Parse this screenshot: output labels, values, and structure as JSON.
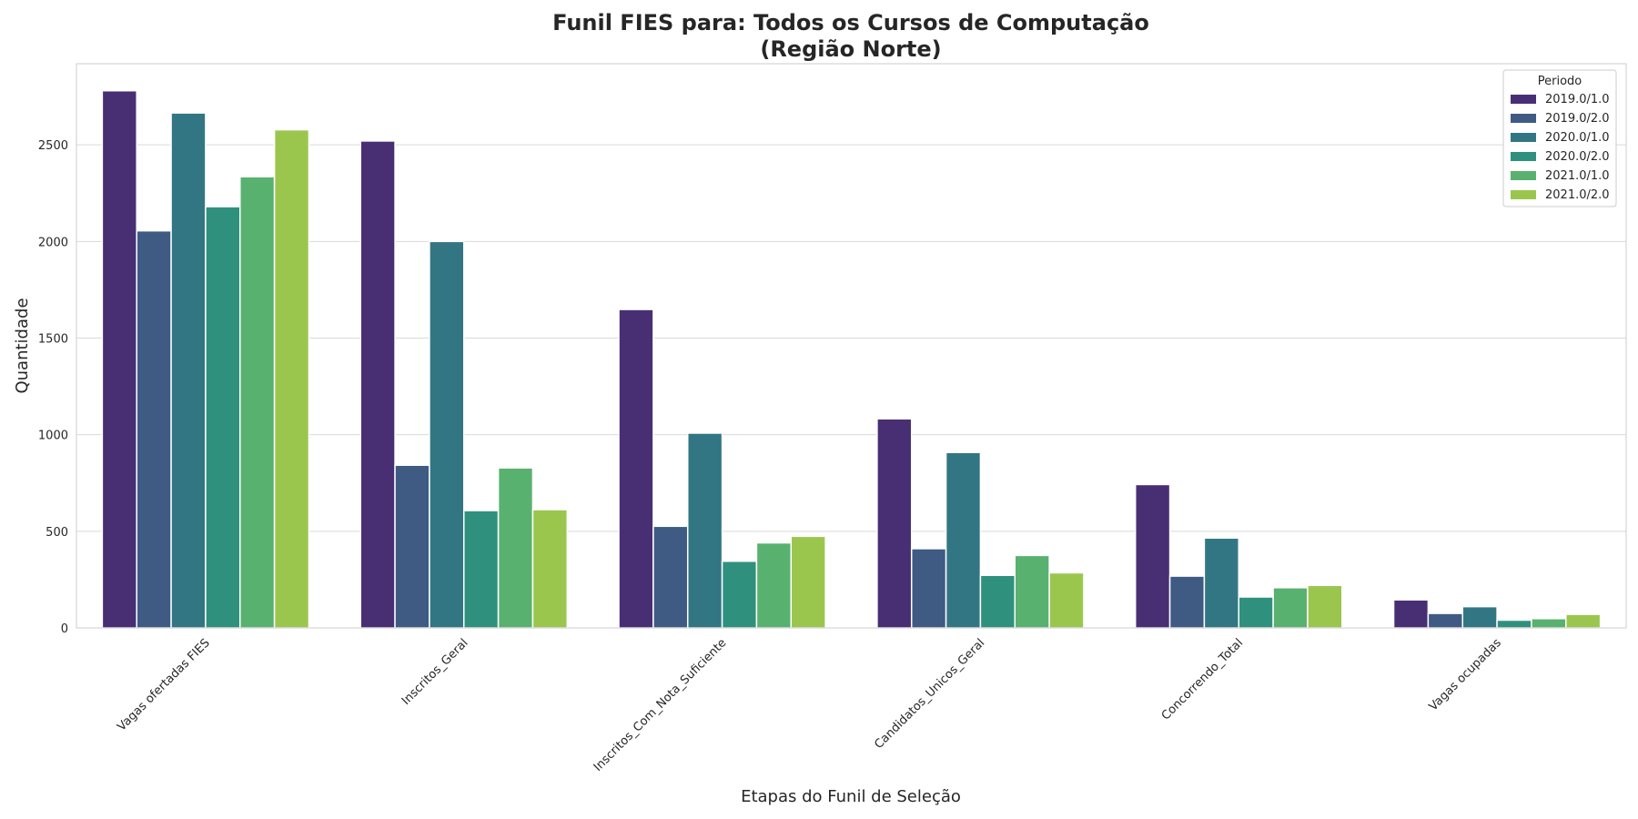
{
  "chart_data": {
    "type": "bar",
    "title_line1": "Funil FIES para: Todos os Cursos de Computação",
    "title_line2": "(Região Norte)",
    "xlabel": "Etapas do Funil de Seleção",
    "ylabel": "Quantidade",
    "ylim": [
      0,
      2920
    ],
    "yticks": [
      0,
      500,
      1000,
      1500,
      2000,
      2500
    ],
    "grid": "horizontal",
    "legend_title": "Periodo",
    "legend_placement": "top-right",
    "categories": [
      "Vagas ofertadas FIES",
      "Inscritos_Geral",
      "Inscritos_Com_Nota_Suficiente",
      "Candidatos_Unicos_Geral",
      "Concorrendo_Total",
      "Vagas ocupadas"
    ],
    "series": [
      {
        "name": "2019.0/1.0",
        "color": "#482f74",
        "values": [
          2780,
          2520,
          1648,
          1082,
          742,
          145
        ]
      },
      {
        "name": "2019.0/2.0",
        "color": "#3f5b83",
        "values": [
          2055,
          842,
          526,
          410,
          268,
          75
        ]
      },
      {
        "name": "2020.0/1.0",
        "color": "#337683",
        "values": [
          2665,
          2000,
          1008,
          908,
          465,
          110
        ]
      },
      {
        "name": "2020.0/2.0",
        "color": "#2f917d",
        "values": [
          2180,
          607,
          345,
          272,
          160,
          40
        ]
      },
      {
        "name": "2021.0/1.0",
        "color": "#59b170",
        "values": [
          2335,
          828,
          440,
          375,
          208,
          48
        ]
      },
      {
        "name": "2021.0/2.0",
        "color": "#9ac64e",
        "values": [
          2578,
          612,
          474,
          285,
          220,
          70
        ]
      }
    ]
  }
}
